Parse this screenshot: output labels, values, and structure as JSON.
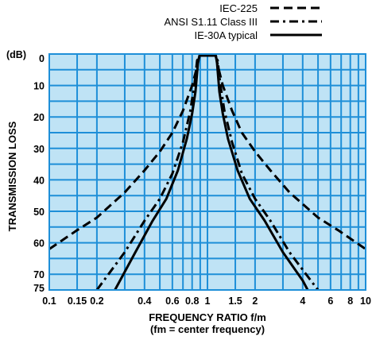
{
  "chart_data": {
    "type": "line",
    "xlabel": "FREQUENCY RATIO f/m",
    "xlabel_note": "(fm = center frequency)",
    "ylabel": "TRANSMISSION LOSS",
    "y_unit": "(dB)",
    "x_scale": "log",
    "xlim": [
      0.1,
      10
    ],
    "ylim": [
      0,
      75
    ],
    "y_inverted": true,
    "grid": true,
    "background_color": "#bfe3f5",
    "grid_color": "#1e8fd8",
    "legend_position": "top-right",
    "x_ticks": [
      {
        "v": 0.1,
        "label": "0.1"
      },
      {
        "v": 0.15,
        "label": "0.15"
      },
      {
        "v": 0.2,
        "label": "0.2"
      },
      {
        "v": 0.4,
        "label": "0.4"
      },
      {
        "v": 0.6,
        "label": "0.6"
      },
      {
        "v": 0.8,
        "label": "0.8"
      },
      {
        "v": 1,
        "label": "1"
      },
      {
        "v": 1.5,
        "label": "1.5"
      },
      {
        "v": 2,
        "label": "2"
      },
      {
        "v": 4,
        "label": "4"
      },
      {
        "v": 6,
        "label": "6"
      },
      {
        "v": 8,
        "label": "8"
      },
      {
        "v": 10,
        "label": "10"
      }
    ],
    "x_grid": [
      0.1,
      0.15,
      0.2,
      0.3,
      0.4,
      0.5,
      0.6,
      0.7,
      0.8,
      0.9,
      1,
      1.5,
      2,
      3,
      4,
      5,
      6,
      7,
      8,
      9,
      10
    ],
    "y_ticks": [
      {
        "v": 0,
        "label": "0"
      },
      {
        "v": 10,
        "label": "10"
      },
      {
        "v": 20,
        "label": "20"
      },
      {
        "v": 30,
        "label": "30"
      },
      {
        "v": 40,
        "label": "40"
      },
      {
        "v": 50,
        "label": "50"
      },
      {
        "v": 60,
        "label": "60"
      },
      {
        "v": 70,
        "label": "70"
      },
      {
        "v": 75,
        "label": "75"
      }
    ],
    "y_grid": [
      0,
      5,
      10,
      15,
      20,
      25,
      30,
      35,
      40,
      45,
      50,
      55,
      60,
      65,
      70,
      75
    ],
    "series": [
      {
        "name": "IE-30A typical",
        "dash": "solid",
        "points": [
          [
            0.26,
            75
          ],
          [
            0.35,
            63
          ],
          [
            0.45,
            53
          ],
          [
            0.55,
            46
          ],
          [
            0.65,
            37
          ],
          [
            0.74,
            27
          ],
          [
            0.8,
            19
          ],
          [
            0.84,
            12
          ],
          [
            0.87,
            3
          ],
          [
            0.89,
            0.5
          ],
          [
            1.13,
            0.5
          ],
          [
            1.15,
            3
          ],
          [
            1.19,
            12
          ],
          [
            1.25,
            19
          ],
          [
            1.35,
            27
          ],
          [
            1.55,
            37
          ],
          [
            1.85,
            46
          ],
          [
            2.3,
            53
          ],
          [
            3.0,
            63
          ],
          [
            4.0,
            72
          ],
          [
            4.3,
            75
          ]
        ]
      },
      {
        "name": "ANSI S1.11 Class III",
        "dash": "dashdot",
        "points": [
          [
            0.2,
            75
          ],
          [
            0.3,
            63
          ],
          [
            0.4,
            53
          ],
          [
            0.5,
            46
          ],
          [
            0.6,
            38
          ],
          [
            0.7,
            28
          ],
          [
            0.78,
            18
          ],
          [
            0.83,
            9
          ],
          [
            0.86,
            2
          ],
          [
            0.9,
            0.5
          ],
          [
            1.11,
            0.5
          ],
          [
            1.16,
            2
          ],
          [
            1.2,
            9
          ],
          [
            1.28,
            18
          ],
          [
            1.43,
            28
          ],
          [
            1.65,
            38
          ],
          [
            2.0,
            46
          ],
          [
            2.5,
            53
          ],
          [
            3.3,
            63
          ],
          [
            4.5,
            72
          ],
          [
            5.0,
            75
          ]
        ]
      },
      {
        "name": "IEC-225",
        "dash": "dash",
        "points": [
          [
            0.1,
            62
          ],
          [
            0.15,
            56
          ],
          [
            0.2,
            52
          ],
          [
            0.3,
            44
          ],
          [
            0.4,
            37
          ],
          [
            0.5,
            31
          ],
          [
            0.6,
            25
          ],
          [
            0.7,
            18
          ],
          [
            0.8,
            10
          ],
          [
            0.85,
            5
          ],
          [
            0.88,
            1.5
          ],
          [
            0.9,
            0.3
          ],
          [
            1.12,
            0.3
          ],
          [
            1.14,
            1.5
          ],
          [
            1.18,
            5
          ],
          [
            1.25,
            10
          ],
          [
            1.43,
            18
          ],
          [
            1.65,
            25
          ],
          [
            2.0,
            31
          ],
          [
            2.5,
            37
          ],
          [
            3.3,
            44
          ],
          [
            5.0,
            52
          ],
          [
            6.7,
            56
          ],
          [
            10,
            62
          ]
        ]
      }
    ]
  }
}
